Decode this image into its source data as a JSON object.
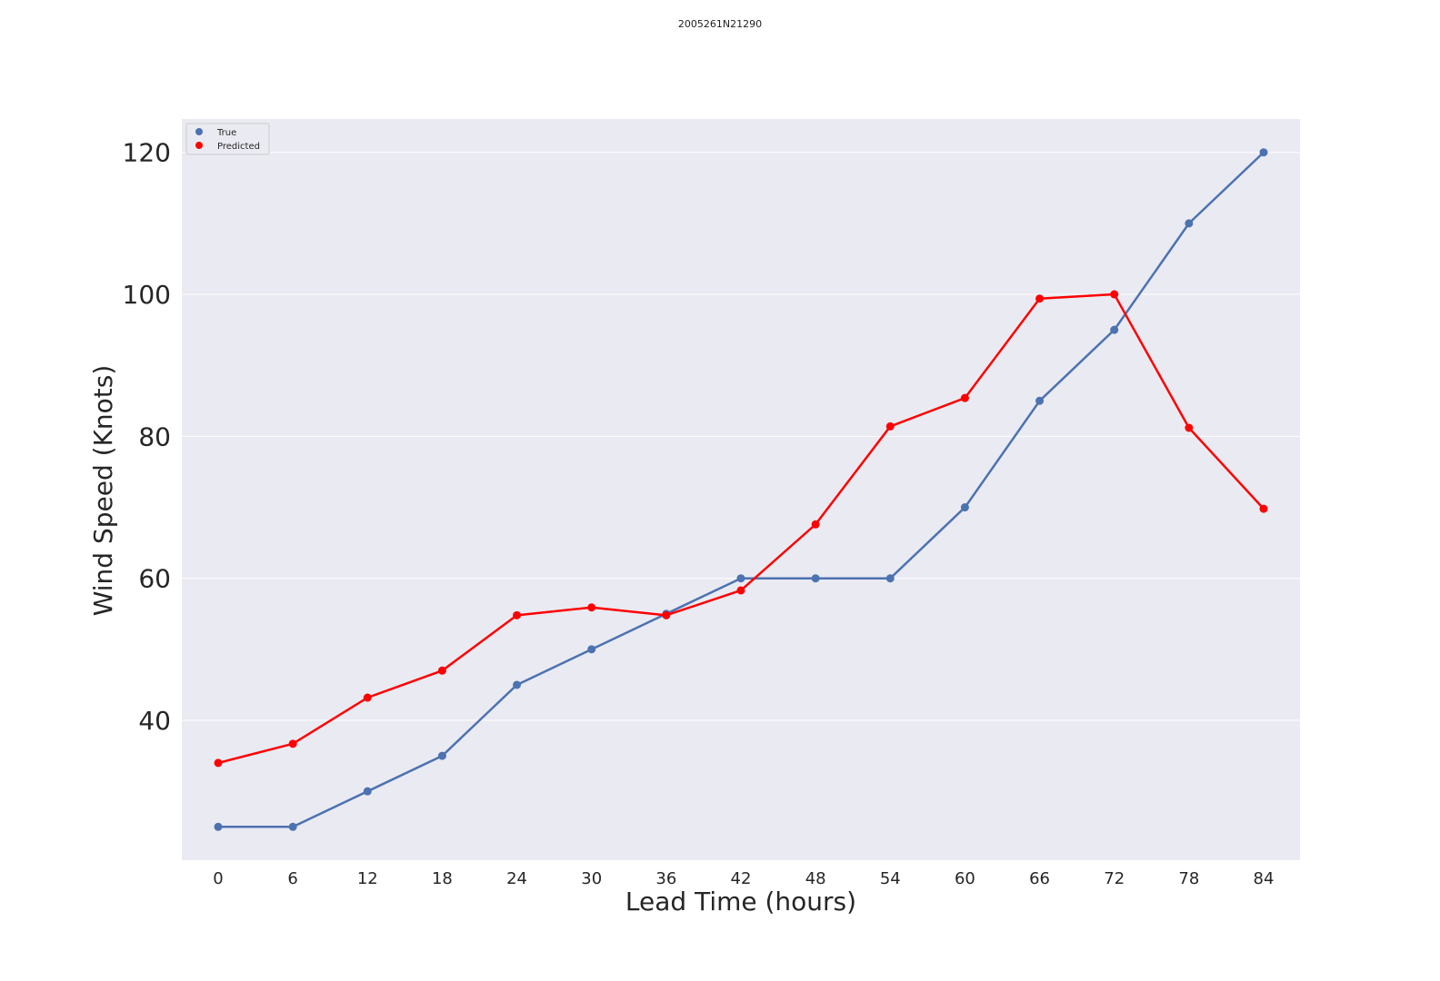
{
  "chart_data": {
    "type": "line",
    "title": "2005261N21290",
    "xlabel": "Lead Time (hours)",
    "ylabel": "Wind Speed (Knots)",
    "x": [
      0,
      6,
      12,
      18,
      24,
      30,
      36,
      42,
      48,
      54,
      60,
      66,
      72,
      78,
      84
    ],
    "yticks": [
      40,
      60,
      80,
      100,
      120
    ],
    "ylim": [
      20.3,
      124.7
    ],
    "grid": true,
    "legend_position": "top-left",
    "series": [
      {
        "name": "True",
        "color": "#4c72b0",
        "values": [
          25,
          25,
          30,
          35,
          45,
          50,
          55,
          60,
          60,
          60,
          70,
          85,
          95,
          110,
          120
        ]
      },
      {
        "name": "Predicted",
        "color": "#ff0000",
        "values": [
          34,
          36.7,
          43.2,
          47,
          54.8,
          55.9,
          54.8,
          58.3,
          67.6,
          81.4,
          85.4,
          99.4,
          100,
          81.2,
          69.8
        ]
      }
    ]
  }
}
